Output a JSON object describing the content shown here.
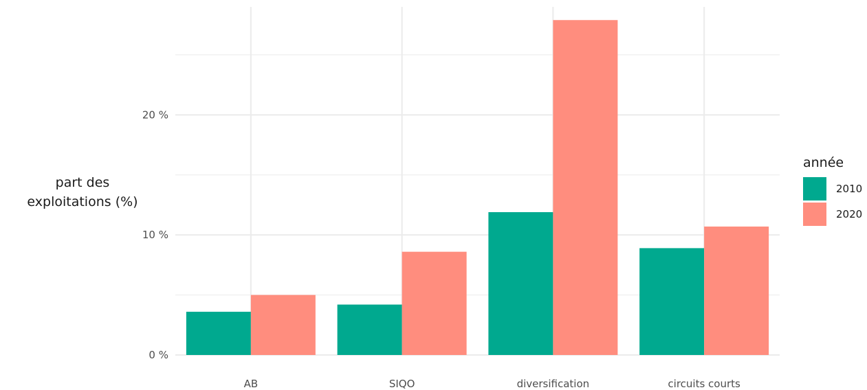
{
  "chart_data": {
    "type": "bar",
    "categories": [
      "AB",
      "SIQO",
      "diversification",
      "circuits courts"
    ],
    "series": [
      {
        "name": "2010",
        "values": [
          3.6,
          4.2,
          11.9,
          8.9
        ],
        "color": "#00A98F"
      },
      {
        "name": "2020",
        "values": [
          5.0,
          8.6,
          27.9,
          10.7
        ],
        "color": "#FF8D7E"
      }
    ],
    "ylim": [
      0,
      29
    ],
    "y_ticks": [
      0,
      10,
      20
    ],
    "y_tick_labels": [
      "0 %",
      "10 %",
      "20 %"
    ],
    "ylabel_lines": [
      "part des",
      "exploitations (%)"
    ],
    "xlabel": "",
    "legend": {
      "title": "année",
      "position": "right"
    },
    "grid": true,
    "grid_color": "#ebebeb"
  }
}
